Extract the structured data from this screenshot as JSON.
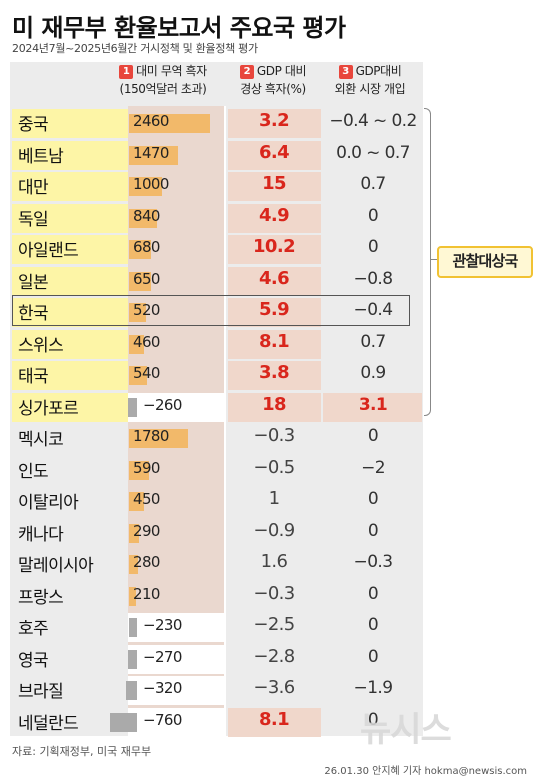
{
  "title": "미 재무부 환율보고서 주요국 평가",
  "subtitle": "2024년7월~2025년6월간 거시정책 및 환율정책 평가",
  "headers": {
    "c1_num": "1",
    "c1_line1": "대미 무역 흑자",
    "c1_line2": "(150억달러 초과)",
    "c2_num": "2",
    "c2_line1": "GDP 대비",
    "c2_line2": "경상 흑자(%)",
    "c3_num": "3",
    "c3_line1": "GDP대비",
    "c3_line2": "외환 시장 개입"
  },
  "observation_label": "관찰대상국",
  "source": "자료: 기획재정부, 미국 재무부",
  "credit": "26.01.30 안지혜 기자 hokma@newsis.com",
  "watermark": "뉴시스",
  "colors": {
    "bar_hl": "#f2b96a",
    "bar_grey": "#aaaaaa",
    "red": "#d9261c",
    "yellow": "#fdf5a6",
    "cell_hl": "#f0d7cb"
  },
  "chart_data": {
    "type": "table",
    "columns": [
      "국가",
      "대미 무역 흑자 (150억달러 초과)",
      "GDP 대비 경상 흑자(%)",
      "GDP대비 외환 시장 개입"
    ],
    "rows": [
      {
        "country": "중국",
        "trade": 2460,
        "trade_label": "2460",
        "current": "3.2",
        "intervention": "−0.4 ~ 0.2",
        "monitored": true,
        "c1": true,
        "c2": true,
        "c3": false
      },
      {
        "country": "베트남",
        "trade": 1470,
        "trade_label": "1470",
        "current": "6.4",
        "intervention": "0.0 ~ 0.7",
        "monitored": true,
        "c1": true,
        "c2": true,
        "c3": false
      },
      {
        "country": "대만",
        "trade": 1000,
        "trade_label": "1000",
        "current": "15",
        "intervention": "0.7",
        "monitored": true,
        "c1": true,
        "c2": true,
        "c3": false
      },
      {
        "country": "독일",
        "trade": 840,
        "trade_label": "840",
        "current": "4.9",
        "intervention": "0",
        "monitored": true,
        "c1": true,
        "c2": true,
        "c3": false
      },
      {
        "country": "아일랜드",
        "trade": 680,
        "trade_label": "680",
        "current": "10.2",
        "intervention": "0",
        "monitored": true,
        "c1": true,
        "c2": true,
        "c3": false
      },
      {
        "country": "일본",
        "trade": 650,
        "trade_label": "650",
        "current": "4.6",
        "intervention": "−0.8",
        "monitored": true,
        "c1": true,
        "c2": true,
        "c3": false
      },
      {
        "country": "한국",
        "trade": 520,
        "trade_label": "520",
        "current": "5.9",
        "intervention": "−0.4",
        "monitored": true,
        "c1": true,
        "c2": true,
        "c3": false
      },
      {
        "country": "스위스",
        "trade": 460,
        "trade_label": "460",
        "current": "8.1",
        "intervention": "0.7",
        "monitored": true,
        "c1": true,
        "c2": true,
        "c3": false
      },
      {
        "country": "태국",
        "trade": 540,
        "trade_label": "540",
        "current": "3.8",
        "intervention": "0.9",
        "monitored": true,
        "c1": true,
        "c2": true,
        "c3": false
      },
      {
        "country": "싱가포르",
        "trade": -260,
        "trade_label": "−260",
        "current": "18",
        "intervention": "3.1",
        "monitored": true,
        "c1": false,
        "c2": true,
        "c3": true
      },
      {
        "country": "멕시코",
        "trade": 1780,
        "trade_label": "1780",
        "current": "−0.3",
        "intervention": "0",
        "monitored": false,
        "c1": true,
        "c2": false,
        "c3": false
      },
      {
        "country": "인도",
        "trade": 590,
        "trade_label": "590",
        "current": "−0.5",
        "intervention": "−2",
        "monitored": false,
        "c1": true,
        "c2": false,
        "c3": false
      },
      {
        "country": "이탈리아",
        "trade": 450,
        "trade_label": "450",
        "current": "1",
        "intervention": "0",
        "monitored": false,
        "c1": true,
        "c2": false,
        "c3": false
      },
      {
        "country": "캐나다",
        "trade": 290,
        "trade_label": "290",
        "current": "−0.9",
        "intervention": "0",
        "monitored": false,
        "c1": true,
        "c2": false,
        "c3": false
      },
      {
        "country": "말레이시아",
        "trade": 280,
        "trade_label": "280",
        "current": "1.6",
        "intervention": "−0.3",
        "monitored": false,
        "c1": true,
        "c2": false,
        "c3": false
      },
      {
        "country": "프랑스",
        "trade": 210,
        "trade_label": "210",
        "current": "−0.3",
        "intervention": "0",
        "monitored": false,
        "c1": true,
        "c2": false,
        "c3": false
      },
      {
        "country": "호주",
        "trade": -230,
        "trade_label": "−230",
        "current": "−2.5",
        "intervention": "0",
        "monitored": false,
        "c1": false,
        "c2": false,
        "c3": false
      },
      {
        "country": "영국",
        "trade": -270,
        "trade_label": "−270",
        "current": "−2.8",
        "intervention": "0",
        "monitored": false,
        "c1": false,
        "c2": false,
        "c3": false
      },
      {
        "country": "브라질",
        "trade": -320,
        "trade_label": "−320",
        "current": "−3.6",
        "intervention": "−1.9",
        "monitored": false,
        "c1": false,
        "c2": false,
        "c3": false
      },
      {
        "country": "네덜란드",
        "trade": -760,
        "trade_label": "−760",
        "current": "8.1",
        "intervention": "0",
        "monitored": false,
        "c1": false,
        "c2": true,
        "c3": false
      }
    ]
  }
}
